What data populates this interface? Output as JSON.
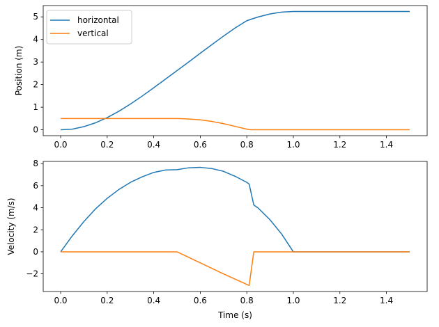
{
  "chart_data": [
    {
      "type": "line",
      "xlabel": "",
      "ylabel": "Position (m)",
      "xlim": [
        -0.075,
        1.575
      ],
      "ylim": [
        -0.26,
        5.5
      ],
      "xticks": [
        0.0,
        0.2,
        0.4,
        0.6,
        0.8,
        1.0,
        1.2,
        1.4
      ],
      "xtick_labels": [
        "0.0",
        "0.2",
        "0.4",
        "0.6",
        "0.8",
        "1.0",
        "1.2",
        "1.4"
      ],
      "yticks": [
        0,
        1,
        2,
        3,
        4,
        5
      ],
      "ytick_labels": [
        "0",
        "1",
        "2",
        "3",
        "4",
        "5"
      ],
      "grid": false,
      "legend": "upper-left",
      "series": [
        {
          "name": "horizontal",
          "color": "#1f77b4",
          "x": [
            0.0,
            0.05,
            0.1,
            0.15,
            0.2,
            0.25,
            0.3,
            0.35,
            0.4,
            0.45,
            0.5,
            0.55,
            0.6,
            0.65,
            0.7,
            0.75,
            0.8,
            0.82,
            0.85,
            0.9,
            0.95,
            1.0,
            1.1,
            1.2,
            1.3,
            1.4,
            1.5
          ],
          "y": [
            0.0,
            0.03,
            0.14,
            0.31,
            0.54,
            0.82,
            1.14,
            1.49,
            1.86,
            2.24,
            2.62,
            3.0,
            3.39,
            3.77,
            4.15,
            4.51,
            4.83,
            4.9,
            5.0,
            5.13,
            5.21,
            5.24,
            5.24,
            5.24,
            5.24,
            5.24,
            5.24
          ]
        },
        {
          "name": "vertical",
          "color": "#ff7f0e",
          "x": [
            0.0,
            0.1,
            0.2,
            0.3,
            0.4,
            0.5,
            0.55,
            0.6,
            0.65,
            0.7,
            0.75,
            0.8,
            0.81,
            0.82,
            0.9,
            1.0,
            1.2,
            1.5
          ],
          "y": [
            0.5,
            0.5,
            0.5,
            0.5,
            0.5,
            0.5,
            0.48,
            0.44,
            0.37,
            0.27,
            0.15,
            0.03,
            0.01,
            0.0,
            0.0,
            0.0,
            0.0,
            0.0
          ]
        }
      ]
    },
    {
      "type": "line",
      "xlabel": "Time (s)",
      "ylabel": "Velocity (m/s)",
      "xlim": [
        -0.075,
        1.575
      ],
      "ylim": [
        -3.6,
        8.2
      ],
      "xticks": [
        0.0,
        0.2,
        0.4,
        0.6,
        0.8,
        1.0,
        1.2,
        1.4
      ],
      "xtick_labels": [
        "0.0",
        "0.2",
        "0.4",
        "0.6",
        "0.8",
        "1.0",
        "1.2",
        "1.4"
      ],
      "yticks": [
        -2,
        0,
        2,
        4,
        6,
        8
      ],
      "ytick_labels": [
        "−2",
        "0",
        "2",
        "4",
        "6",
        "8"
      ],
      "grid": false,
      "series": [
        {
          "name": "horizontal",
          "color": "#1f77b4",
          "x": [
            0.0,
            0.05,
            0.1,
            0.15,
            0.2,
            0.25,
            0.3,
            0.35,
            0.4,
            0.45,
            0.5,
            0.55,
            0.6,
            0.65,
            0.7,
            0.75,
            0.8,
            0.81,
            0.83,
            0.85,
            0.9,
            0.95,
            1.0,
            1.1,
            1.2,
            1.3,
            1.4,
            1.5
          ],
          "y": [
            0.0,
            1.45,
            2.75,
            3.9,
            4.85,
            5.65,
            6.3,
            6.8,
            7.2,
            7.42,
            7.45,
            7.62,
            7.66,
            7.55,
            7.3,
            6.85,
            6.3,
            6.15,
            4.25,
            3.95,
            2.9,
            1.6,
            0.0,
            0.0,
            0.0,
            0.0,
            0.0,
            0.0
          ]
        },
        {
          "name": "vertical",
          "color": "#ff7f0e",
          "x": [
            0.0,
            0.1,
            0.2,
            0.3,
            0.4,
            0.5,
            0.6,
            0.7,
            0.81,
            0.83,
            0.9,
            1.0,
            1.2,
            1.5
          ],
          "y": [
            0.0,
            0.0,
            0.0,
            0.0,
            0.0,
            0.0,
            -1.0,
            -2.0,
            -3.05,
            0.0,
            0.0,
            0.0,
            0.0,
            0.0
          ]
        }
      ]
    }
  ]
}
